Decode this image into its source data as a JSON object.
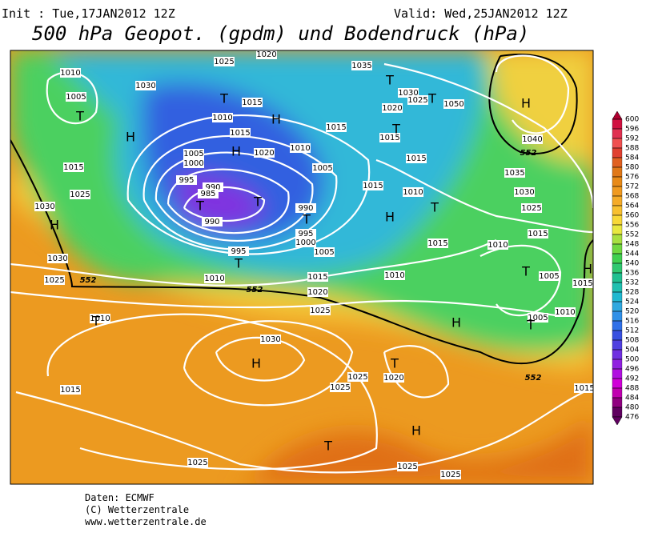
{
  "header": {
    "init": "Init : Tue,17JAN2012 12Z",
    "valid": "Valid: Wed,25JAN2012 12Z",
    "title": "500 hPa Geopot. (gpdm) und Bodendruck (hPa)"
  },
  "legend": {
    "values": [
      600,
      596,
      592,
      588,
      584,
      580,
      576,
      572,
      568,
      564,
      560,
      556,
      552,
      548,
      544,
      540,
      536,
      532,
      528,
      524,
      520,
      516,
      512,
      508,
      504,
      500,
      496,
      492,
      488,
      484,
      480,
      476
    ],
    "colors": [
      "#b00030",
      "#d01040",
      "#e03050",
      "#f05050",
      "#e04030",
      "#e06020",
      "#e07818",
      "#e88a18",
      "#f09a20",
      "#f5ab28",
      "#f8c030",
      "#f8d838",
      "#e8e840",
      "#a8e040",
      "#70d840",
      "#40d050",
      "#30c870",
      "#20c090",
      "#20c0b0",
      "#20b8d0",
      "#30a8e0",
      "#3090e8",
      "#3070e8",
      "#3850e0",
      "#5040e0",
      "#7030e0",
      "#9020e0",
      "#b010e0",
      "#d000d8",
      "#c000b0",
      "#900080",
      "#600060"
    ]
  },
  "pressure_labels": [
    "1010",
    "1005",
    "1030",
    "1025",
    "1020",
    "1035",
    "1015",
    "1010",
    "1015",
    "1020",
    "1010",
    "1005",
    "1000",
    "995",
    "990",
    "985",
    "990",
    "990",
    "995",
    "1000",
    "1005",
    "995",
    "1005",
    "1015",
    "1015",
    "1020",
    "1030",
    "1025",
    "1050",
    "1040",
    "1035",
    "1030",
    "1025",
    "1015",
    "1015",
    "1010",
    "1015",
    "1010",
    "1015",
    "1005",
    "1015",
    "1010",
    "1005",
    "1010",
    "1015",
    "1020",
    "1025",
    "1010",
    "1015",
    "1025",
    "1030",
    "1030",
    "1025",
    "1010",
    "1030",
    "1020",
    "1025",
    "1025",
    "1015",
    "1025",
    "1025",
    "1025",
    "1015"
  ],
  "centers": [
    "T",
    "H",
    "T",
    "H",
    "H",
    "T",
    "T",
    "T",
    "T",
    "T",
    "T",
    "T",
    "H",
    "T",
    "H",
    "T",
    "H",
    "H",
    "T",
    "T",
    "H",
    "H",
    "T",
    "T",
    "H"
  ],
  "contour_labels": [
    "552",
    "552",
    "552",
    "552"
  ],
  "footer": {
    "source": "Daten: ECMWF",
    "copyright": "(C) Wetterzentrale",
    "url": "www.wetterzentrale.de"
  }
}
